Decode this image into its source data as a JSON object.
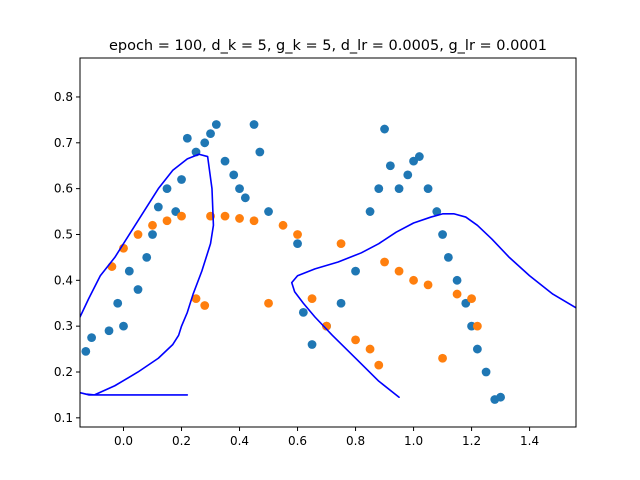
{
  "chart_data": {
    "type": "scatter",
    "title": "epoch = 100, d_k = 5, g_k = 5, d_lr = 0.0005, g_lr = 0.0001",
    "xlabel": "",
    "ylabel": "",
    "xlim": [
      -0.15,
      1.56
    ],
    "ylim": [
      0.08,
      0.885
    ],
    "xticks": [
      0.0,
      0.2,
      0.4,
      0.6,
      0.8,
      1.0,
      1.2,
      1.4
    ],
    "xtick_labels": [
      "0.0",
      "0.2",
      "0.4",
      "0.6",
      "0.8",
      "1.0",
      "1.2",
      "1.4"
    ],
    "yticks": [
      0.1,
      0.2,
      0.3,
      0.4,
      0.5,
      0.6,
      0.7,
      0.8
    ],
    "ytick_labels": [
      "0.1",
      "0.2",
      "0.3",
      "0.4",
      "0.5",
      "0.6",
      "0.7",
      "0.8"
    ],
    "grid": false,
    "legend": "none",
    "series": [
      {
        "kind": "scatter",
        "color": "#1f77b4",
        "x": [
          -0.13,
          -0.11,
          -0.05,
          -0.02,
          0.0,
          0.02,
          0.05,
          0.08,
          0.1,
          0.12,
          0.15,
          0.18,
          0.2,
          0.22,
          0.25,
          0.28,
          0.3,
          0.32,
          0.35,
          0.38,
          0.4,
          0.42,
          0.45,
          0.47,
          0.5,
          0.6,
          0.62,
          0.65,
          0.7,
          0.75,
          0.8,
          0.85,
          0.88,
          0.9,
          0.92,
          0.95,
          0.98,
          1.0,
          1.02,
          1.05,
          1.08,
          1.1,
          1.12,
          1.15,
          1.18,
          1.2,
          1.22,
          1.25,
          1.28,
          1.3
        ],
        "y": [
          0.245,
          0.275,
          0.29,
          0.35,
          0.3,
          0.42,
          0.38,
          0.45,
          0.5,
          0.56,
          0.6,
          0.55,
          0.62,
          0.71,
          0.68,
          0.7,
          0.72,
          0.74,
          0.66,
          0.63,
          0.6,
          0.58,
          0.74,
          0.68,
          0.55,
          0.48,
          0.33,
          0.26,
          0.3,
          0.35,
          0.42,
          0.55,
          0.6,
          0.73,
          0.65,
          0.6,
          0.63,
          0.66,
          0.67,
          0.6,
          0.55,
          0.5,
          0.45,
          0.4,
          0.35,
          0.3,
          0.25,
          0.2,
          0.14,
          0.145
        ]
      },
      {
        "kind": "scatter",
        "color": "#ff7f0e",
        "x": [
          -0.04,
          0.0,
          0.05,
          0.1,
          0.15,
          0.2,
          0.25,
          0.28,
          0.3,
          0.35,
          0.4,
          0.45,
          0.5,
          0.55,
          0.6,
          0.65,
          0.7,
          0.75,
          0.8,
          0.85,
          0.88,
          0.9,
          0.95,
          1.0,
          1.05,
          1.1,
          1.15,
          1.2,
          1.22
        ],
        "y": [
          0.43,
          0.47,
          0.5,
          0.52,
          0.53,
          0.54,
          0.36,
          0.345,
          0.54,
          0.54,
          0.535,
          0.53,
          0.35,
          0.52,
          0.5,
          0.36,
          0.3,
          0.48,
          0.27,
          0.25,
          0.215,
          0.44,
          0.42,
          0.4,
          0.39,
          0.23,
          0.37,
          0.36,
          0.3
        ]
      },
      {
        "kind": "line",
        "color": "#0000ff",
        "x": [
          -0.15,
          -0.12,
          -0.08,
          -0.03,
          0.02,
          0.07,
          0.12,
          0.17,
          0.22,
          0.26,
          0.29,
          0.305,
          0.31,
          0.3,
          0.27,
          0.24,
          0.22,
          0.2,
          0.19,
          0.17,
          0.12,
          0.05,
          -0.03,
          -0.1,
          -0.13,
          -0.15,
          -0.15,
          -0.15,
          -0.12,
          -0.05,
          0.05,
          0.15,
          0.22
        ],
        "y": [
          0.32,
          0.36,
          0.41,
          0.45,
          0.5,
          0.55,
          0.6,
          0.64,
          0.665,
          0.675,
          0.67,
          0.6,
          0.52,
          0.48,
          0.42,
          0.37,
          0.33,
          0.3,
          0.28,
          0.26,
          0.23,
          0.2,
          0.17,
          0.15,
          0.152,
          0.155,
          0.155,
          0.155,
          0.15,
          0.15,
          0.15,
          0.15,
          0.15
        ]
      },
      {
        "kind": "line",
        "color": "#0000ff",
        "x": [
          0.95,
          0.88,
          0.8,
          0.72,
          0.66,
          0.62,
          0.59,
          0.58,
          0.6,
          0.66,
          0.74,
          0.82,
          0.88,
          0.94,
          1.0,
          1.06,
          1.1,
          1.14,
          1.18,
          1.22,
          1.27,
          1.33,
          1.4,
          1.48,
          1.56
        ],
        "y": [
          0.145,
          0.18,
          0.23,
          0.28,
          0.32,
          0.35,
          0.375,
          0.395,
          0.41,
          0.425,
          0.44,
          0.46,
          0.48,
          0.505,
          0.525,
          0.538,
          0.545,
          0.545,
          0.538,
          0.52,
          0.49,
          0.45,
          0.41,
          0.37,
          0.34
        ]
      }
    ]
  }
}
